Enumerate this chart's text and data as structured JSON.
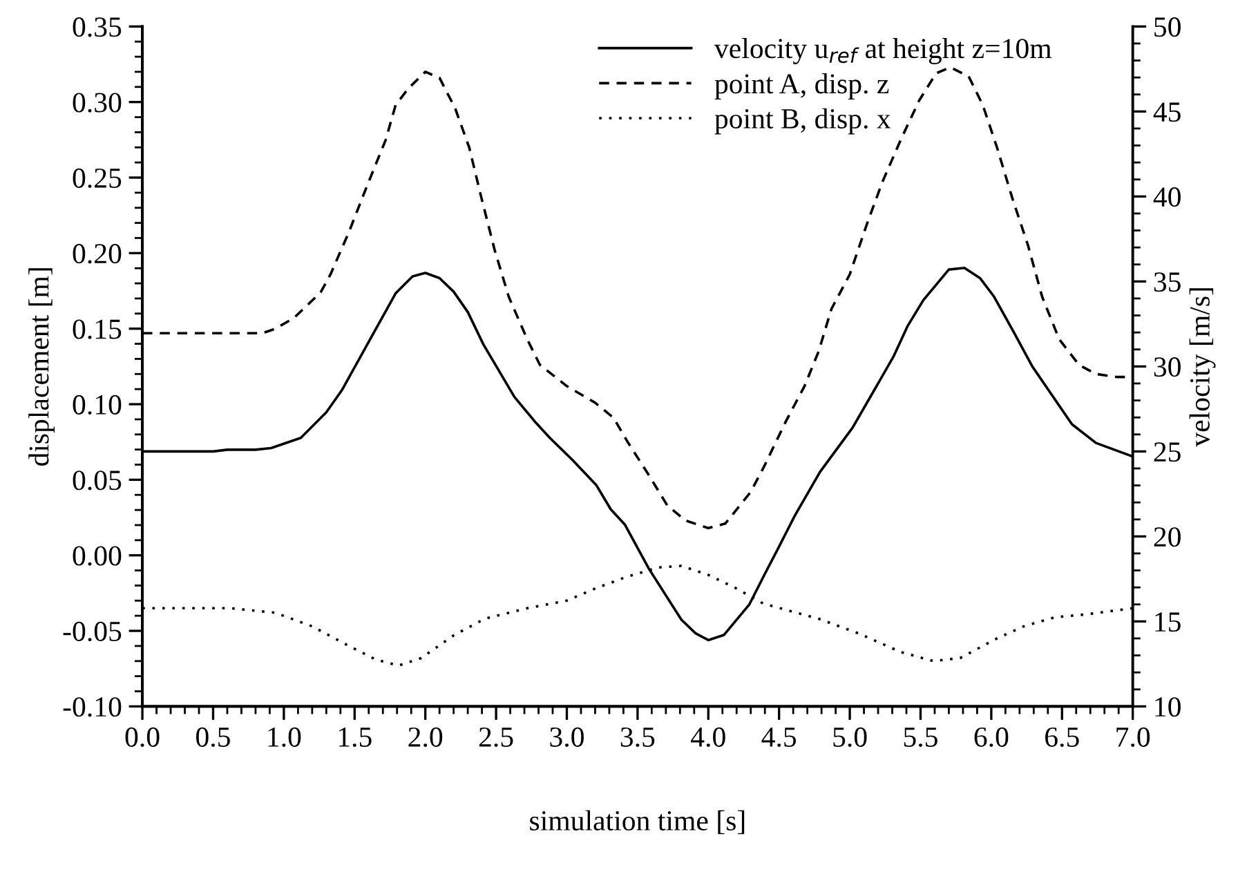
{
  "chart_data": {
    "type": "line",
    "xlabel": "simulation time [s]",
    "ylabel": "displacement [m]",
    "y2label": "velocity [m/s]",
    "xlim": [
      0,
      7
    ],
    "xticks": [
      {
        "value": 0,
        "label": "0.0"
      },
      {
        "value": 0.5,
        "label": "0.5"
      },
      {
        "value": 1,
        "label": "1.0"
      },
      {
        "value": 1.5,
        "label": "1.5"
      },
      {
        "value": 2,
        "label": "2.0"
      },
      {
        "value": 2.5,
        "label": "2.5"
      },
      {
        "value": 3,
        "label": "3.0"
      },
      {
        "value": 3.5,
        "label": "3.5"
      },
      {
        "value": 4,
        "label": "4.0"
      },
      {
        "value": 4.5,
        "label": "4.5"
      },
      {
        "value": 5,
        "label": "5.0"
      },
      {
        "value": 5.5,
        "label": "5.5"
      },
      {
        "value": 6,
        "label": "6.0"
      },
      {
        "value": 6.5,
        "label": "6.5"
      },
      {
        "value": 7,
        "label": "7.0"
      }
    ],
    "ylim": [
      -0.1,
      0.35
    ],
    "yticks": [
      {
        "value": -0.1,
        "label": "-0.10"
      },
      {
        "value": -0.05,
        "label": "-0.05"
      },
      {
        "value": 0,
        "label": "0.00"
      },
      {
        "value": 0.05,
        "label": "0.05"
      },
      {
        "value": 0.1,
        "label": "0.10"
      },
      {
        "value": 0.15,
        "label": "0.15"
      },
      {
        "value": 0.2,
        "label": "0.20"
      },
      {
        "value": 0.25,
        "label": "0.25"
      },
      {
        "value": 0.3,
        "label": "0.30"
      },
      {
        "value": 0.35,
        "label": "0.35"
      }
    ],
    "y2lim": [
      10,
      50
    ],
    "y2ticks": [
      10,
      15,
      20,
      25,
      30,
      35,
      40,
      45,
      50
    ],
    "legend": "top right",
    "grid": false,
    "series": [
      {
        "name": "velocity u$_{ref}$ at height z=10m",
        "color": "#000000",
        "line_style": "solid",
        "axis": "y2",
        "x": [
          0,
          0.5,
          0.6,
          0.8,
          0.91,
          1.12,
          1.3,
          1.41,
          1.59,
          1.79,
          1.91,
          2.0,
          2.1,
          2.2,
          2.3,
          2.41,
          2.63,
          2.78,
          2.88,
          3.04,
          3.21,
          3.31,
          3.41,
          3.58,
          3.81,
          3.91,
          4.0,
          4.11,
          4.29,
          4.4,
          4.5,
          4.61,
          4.79,
          5.02,
          5.2,
          5.31,
          5.41,
          5.52,
          5.7,
          5.81,
          5.92,
          6.02,
          6.16,
          6.29,
          6.57,
          6.74,
          7.0
        ],
        "values": [
          25.0,
          25.0,
          25.1,
          25.1,
          25.2,
          25.8,
          27.3,
          28.6,
          31.3,
          34.3,
          35.3,
          35.5,
          35.2,
          34.4,
          33.2,
          31.3,
          28.2,
          26.7,
          25.8,
          24.5,
          23.0,
          21.6,
          20.7,
          18.1,
          15.1,
          14.3,
          13.9,
          14.2,
          16.0,
          17.8,
          19.4,
          21.2,
          23.8,
          26.4,
          29.0,
          30.6,
          32.4,
          33.9,
          35.7,
          35.8,
          35.2,
          34.1,
          32.0,
          30.0,
          26.6,
          25.5,
          24.7
        ]
      },
      {
        "name": "point A, disp. z",
        "color": "#000000",
        "line_style": "dashed",
        "x": [
          0,
          0.85,
          0.94,
          1.07,
          1.26,
          1.33,
          1.46,
          1.59,
          1.72,
          1.79,
          1.88,
          2.0,
          2.1,
          2.21,
          2.31,
          2.39,
          2.49,
          2.59,
          2.72,
          2.81,
          3.0,
          3.2,
          3.33,
          3.43,
          3.58,
          3.71,
          3.84,
          4.0,
          4.12,
          4.3,
          4.39,
          4.55,
          4.68,
          4.78,
          4.87,
          5.0,
          5.12,
          5.23,
          5.36,
          5.49,
          5.61,
          5.71,
          5.84,
          5.94,
          6.04,
          6.15,
          6.26,
          6.36,
          6.48,
          6.62,
          6.74,
          6.89,
          7.0
        ],
        "values": [
          0.147,
          0.147,
          0.15,
          0.157,
          0.174,
          0.186,
          0.214,
          0.245,
          0.275,
          0.298,
          0.309,
          0.32,
          0.316,
          0.296,
          0.27,
          0.239,
          0.202,
          0.171,
          0.143,
          0.126,
          0.112,
          0.101,
          0.091,
          0.075,
          0.053,
          0.033,
          0.023,
          0.018,
          0.021,
          0.042,
          0.058,
          0.089,
          0.112,
          0.135,
          0.163,
          0.186,
          0.219,
          0.247,
          0.275,
          0.301,
          0.319,
          0.323,
          0.317,
          0.298,
          0.27,
          0.236,
          0.205,
          0.171,
          0.143,
          0.126,
          0.12,
          0.118,
          0.118
        ]
      },
      {
        "name": "point B, disp. x",
        "color": "#000000",
        "line_style": "dotted",
        "x": [
          0,
          0.62,
          0.94,
          1.2,
          1.46,
          1.65,
          1.81,
          1.97,
          2.2,
          2.42,
          2.72,
          3.0,
          3.2,
          3.43,
          3.65,
          3.81,
          4.0,
          4.2,
          4.39,
          4.78,
          5.07,
          5.36,
          5.59,
          5.78,
          6.04,
          6.23,
          6.45,
          6.68,
          7.0
        ],
        "values": [
          -0.035,
          -0.035,
          -0.038,
          -0.047,
          -0.06,
          -0.069,
          -0.073,
          -0.068,
          -0.053,
          -0.042,
          -0.035,
          -0.03,
          -0.022,
          -0.014,
          -0.008,
          -0.007,
          -0.013,
          -0.022,
          -0.032,
          -0.042,
          -0.052,
          -0.064,
          -0.07,
          -0.068,
          -0.055,
          -0.047,
          -0.041,
          -0.039,
          -0.035
        ]
      }
    ]
  }
}
